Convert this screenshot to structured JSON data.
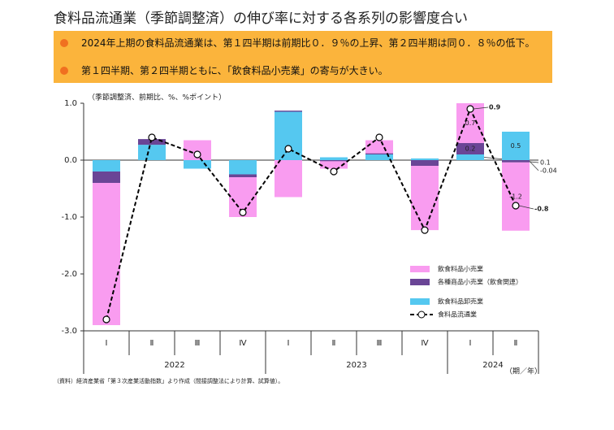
{
  "chart_data": {
    "type": "bar",
    "title": "食料品流通業（季節調整済）の伸び率に対する各系列の影響度合い",
    "points": [
      "2024年上期の食料品流通業は、第１四半期は前期比０．９％の上昇、第２四半期は同０．８％の低下。",
      "第１四半期、第２四半期ともに、「飲食料品小売業」の寄与が大きい。"
    ],
    "y_axis_label": "（季節調整済、前期比、%、%ポイント）",
    "x_axis_label": "（期／年）",
    "source": "（資料）経済産業省「第３次産業活動指数」より作成（間接調整法により計算、試算値）。",
    "categories": [
      "Ⅰ",
      "Ⅱ",
      "Ⅲ",
      "Ⅳ",
      "Ⅰ",
      "Ⅱ",
      "Ⅲ",
      "Ⅳ",
      "Ⅰ",
      "Ⅱ"
    ],
    "year_labels": [
      "2022",
      null,
      null,
      null,
      "2023",
      null,
      null,
      null,
      "2024",
      null
    ],
    "ylim": [
      -3,
      1
    ],
    "yticks": [
      {
        "value": -3,
        "label": "-3.0"
      },
      {
        "value": -2,
        "label": "-2.0"
      },
      {
        "value": -1,
        "label": "-1.0"
      },
      {
        "value": 0,
        "label": "0.0"
      },
      {
        "value": 1,
        "label": "1.0"
      }
    ],
    "series": [
      {
        "name": "飲食料品卸売業",
        "color": "#55c8f0",
        "values": [
          -0.2,
          0.27,
          -0.15,
          -0.25,
          0.85,
          0.05,
          0.1,
          0.03,
          0.1,
          0.5
        ],
        "value_labels": [
          null,
          null,
          null,
          null,
          null,
          null,
          null,
          null,
          "0.1",
          "0.5"
        ]
      },
      {
        "name": "各種商品小売業（飲食関連）",
        "color": "#6a4596",
        "values": [
          -0.2,
          0.1,
          0.0,
          -0.05,
          0.02,
          -0.02,
          0.02,
          -0.1,
          0.2,
          -0.04
        ],
        "value_labels": [
          null,
          null,
          null,
          null,
          null,
          null,
          null,
          null,
          "0.2",
          "-0.04"
        ]
      },
      {
        "name": "飲食料品小売業",
        "color": "#f99cf0",
        "values": [
          -2.5,
          0.0,
          0.35,
          -0.7,
          -0.65,
          -0.13,
          0.23,
          -1.13,
          0.7,
          -1.2
        ],
        "value_labels": [
          null,
          null,
          null,
          null,
          null,
          null,
          null,
          null,
          "0.7",
          "-1.2"
        ]
      },
      {
        "name": "食料品流通業",
        "type": "line",
        "color": "#000000",
        "values": [
          -2.8,
          0.4,
          0.1,
          -0.92,
          0.2,
          -0.2,
          0.4,
          -1.23,
          0.9,
          -0.8
        ],
        "value_labels": [
          null,
          null,
          null,
          null,
          null,
          null,
          null,
          null,
          "0.9",
          "-0.8"
        ]
      }
    ]
  }
}
